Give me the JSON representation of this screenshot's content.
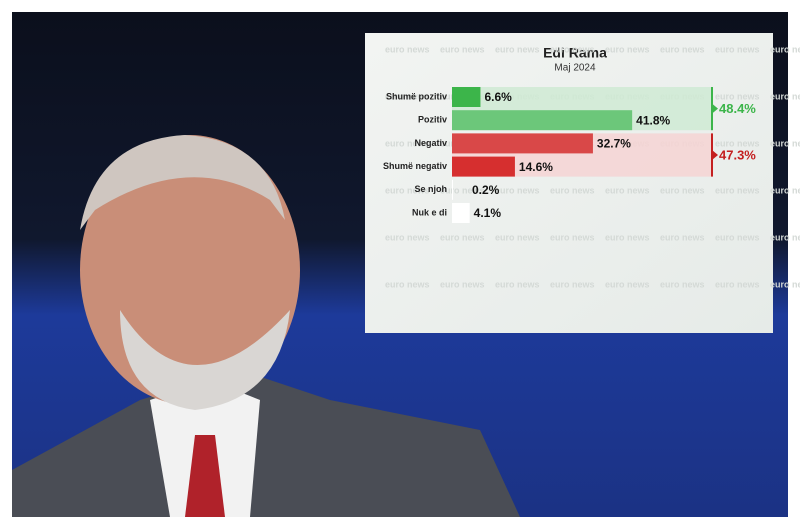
{
  "chart_data": {
    "type": "hbar",
    "title": "Edi Rama",
    "subtitle": "Maj 2024",
    "watermark": "euro news",
    "categories": [
      "Shumë pozitiv",
      "Pozitiv",
      "Negativ",
      "Shumë negativ",
      "Se njoh",
      "Nuk e di"
    ],
    "values": [
      6.6,
      41.8,
      32.7,
      14.6,
      0.2,
      4.1
    ],
    "value_labels": [
      "6.6%",
      "41.8%",
      "32.7%",
      "14.6%",
      "0.2%",
      "4.1%"
    ],
    "colors": [
      "#3cb54a",
      "#6cc77a",
      "#d94848",
      "#d62f2f",
      "#ffffff",
      "#ffffff"
    ],
    "annotations": [
      {
        "value": 48.4,
        "label": "48.4%",
        "color": "#3cb54a",
        "band_color": "#cfead3"
      },
      {
        "value": 47.3,
        "label": "47.3%",
        "color": "#c42020",
        "band_color": "#f6d3d3"
      }
    ]
  }
}
